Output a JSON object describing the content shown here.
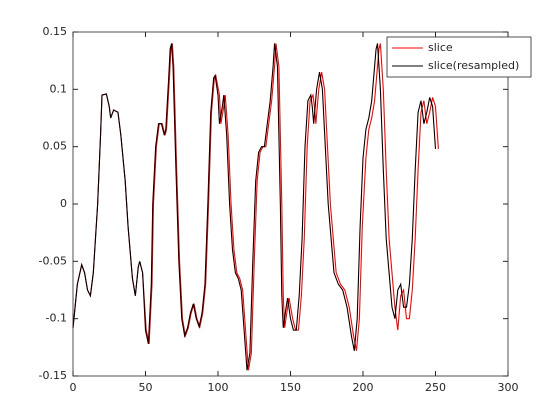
{
  "chart_data": {
    "type": "line",
    "xlim": [
      0,
      300
    ],
    "xticks": [
      0,
      50,
      100,
      150,
      200,
      250,
      300
    ],
    "ylim": [
      -0.15,
      0.15
    ],
    "yticks": [
      -0.15,
      -0.1,
      -0.05,
      0,
      0.05,
      0.1,
      0.15
    ],
    "grid": false,
    "legend": "northeast",
    "series": [
      {
        "name": "slice",
        "color": "#ff0000",
        "x": [
          0,
          3,
          6,
          8,
          10,
          12,
          14,
          17,
          19,
          20,
          23,
          25,
          26,
          28,
          31,
          33,
          36,
          38,
          41,
          43,
          45,
          46,
          48,
          50.5,
          52.5,
          54.5,
          55.5,
          57.5,
          59.5,
          61.5,
          63.5,
          64.5,
          66.5,
          67.5,
          68.5,
          69.5,
          71.5,
          73.5,
          75.5,
          77.5,
          79.5,
          81.5,
          83.5,
          85.5,
          87.5,
          89.5,
          91.5,
          93.5,
          95.5,
          97.5,
          98.5,
          101,
          102,
          104,
          105,
          107,
          109,
          111,
          113,
          115,
          117,
          119,
          121,
          123,
          125,
          127,
          129,
          131,
          133,
          135,
          137,
          139,
          140,
          142,
          144,
          145,
          146,
          148,
          149,
          151.5,
          153.5,
          155.5,
          157.5,
          159.5,
          161.5,
          163.5,
          165.5,
          166.5,
          167.5,
          169.5,
          171.5,
          173.5,
          175.5,
          177.5,
          179.5,
          181.5,
          184.5,
          187.5,
          190.5,
          193.5,
          195.5,
          197.5,
          199.5,
          202,
          204,
          206,
          208,
          211,
          212,
          214,
          216,
          218,
          220,
          222,
          224,
          226,
          228,
          230,
          232,
          234,
          236,
          238,
          240,
          242,
          244,
          246,
          248,
          250,
          252
        ],
        "values": [
          -0.108,
          -0.07,
          -0.053,
          -0.06,
          -0.075,
          -0.08,
          -0.06,
          0.0,
          0.06,
          0.095,
          0.096,
          0.085,
          0.075,
          0.082,
          0.08,
          0.06,
          0.02,
          -0.02,
          -0.065,
          -0.08,
          -0.055,
          -0.05,
          -0.06,
          -0.11,
          -0.122,
          -0.07,
          0.0,
          0.05,
          0.07,
          0.07,
          0.06,
          0.065,
          0.11,
          0.135,
          0.14,
          0.12,
          0.03,
          -0.05,
          -0.1,
          -0.115,
          -0.108,
          -0.095,
          -0.087,
          -0.1,
          -0.107,
          -0.095,
          -0.07,
          0.0,
          0.08,
          0.11,
          0.112,
          0.095,
          0.07,
          0.085,
          0.095,
          0.06,
          0.0,
          -0.04,
          -0.06,
          -0.065,
          -0.075,
          -0.11,
          -0.145,
          -0.13,
          -0.05,
          0.02,
          0.045,
          0.05,
          0.05,
          0.07,
          0.09,
          0.12,
          0.14,
          0.12,
          0.0,
          -0.08,
          -0.108,
          -0.09,
          -0.082,
          -0.1,
          -0.11,
          -0.11,
          -0.08,
          -0.03,
          0.05,
          0.09,
          0.095,
          0.085,
          0.07,
          0.1,
          0.115,
          0.1,
          0.05,
          0.0,
          -0.03,
          -0.06,
          -0.07,
          -0.075,
          -0.09,
          -0.115,
          -0.128,
          -0.1,
          -0.02,
          0.04,
          0.065,
          0.075,
          0.09,
          0.135,
          0.14,
          0.1,
          0.03,
          -0.03,
          -0.06,
          -0.09,
          -0.11,
          -0.08,
          -0.075,
          -0.1,
          -0.1,
          -0.075,
          -0.03,
          0.03,
          0.08,
          0.09,
          0.07,
          0.08,
          0.093,
          0.085,
          0.048
        ]
      },
      {
        "name": "slice(resampled)",
        "color": "#000000",
        "x": [
          0,
          3,
          6,
          8,
          10,
          12,
          14,
          17,
          19,
          20,
          23,
          25,
          26,
          28,
          31,
          33,
          36,
          38,
          41,
          43,
          45,
          46,
          48,
          50,
          52,
          54,
          55,
          57,
          59,
          61,
          63,
          64,
          66,
          67,
          68,
          69,
          71,
          73,
          75,
          77,
          79,
          81,
          83,
          85,
          87,
          89,
          91,
          93,
          95,
          97,
          98,
          100,
          101,
          103,
          104,
          106,
          108,
          110,
          112,
          114,
          116,
          118,
          120,
          122,
          124,
          126,
          128,
          130,
          132,
          134,
          136,
          138,
          139,
          141,
          143,
          144,
          145,
          147,
          148,
          150,
          152,
          154,
          156,
          158,
          160,
          162,
          164,
          165,
          166,
          168,
          170,
          172,
          174,
          176,
          178,
          180,
          183,
          186,
          189,
          192,
          194,
          196,
          198,
          200,
          202,
          204,
          206,
          209,
          210,
          212,
          214,
          216,
          218,
          220,
          222,
          224,
          226,
          228,
          230,
          232,
          234,
          236,
          238,
          240,
          242,
          244,
          246,
          248,
          250
        ],
        "values": [
          -0.108,
          -0.07,
          -0.053,
          -0.06,
          -0.075,
          -0.08,
          -0.06,
          0.0,
          0.06,
          0.095,
          0.096,
          0.085,
          0.075,
          0.082,
          0.08,
          0.06,
          0.02,
          -0.02,
          -0.065,
          -0.08,
          -0.055,
          -0.05,
          -0.06,
          -0.11,
          -0.122,
          -0.07,
          0.0,
          0.05,
          0.07,
          0.07,
          0.06,
          0.065,
          0.11,
          0.135,
          0.14,
          0.12,
          0.03,
          -0.05,
          -0.1,
          -0.115,
          -0.108,
          -0.095,
          -0.087,
          -0.1,
          -0.107,
          -0.095,
          -0.07,
          0.0,
          0.08,
          0.11,
          0.112,
          0.095,
          0.07,
          0.085,
          0.095,
          0.06,
          0.0,
          -0.04,
          -0.06,
          -0.065,
          -0.075,
          -0.11,
          -0.145,
          -0.13,
          -0.05,
          0.02,
          0.045,
          0.05,
          0.05,
          0.07,
          0.09,
          0.12,
          0.14,
          0.12,
          0.0,
          -0.08,
          -0.108,
          -0.09,
          -0.082,
          -0.1,
          -0.11,
          -0.11,
          -0.08,
          -0.03,
          0.05,
          0.09,
          0.095,
          0.085,
          0.07,
          0.1,
          0.115,
          0.1,
          0.05,
          0.0,
          -0.03,
          -0.06,
          -0.07,
          -0.075,
          -0.09,
          -0.115,
          -0.128,
          -0.1,
          -0.02,
          0.04,
          0.065,
          0.075,
          0.09,
          0.135,
          0.14,
          0.1,
          0.03,
          -0.03,
          -0.06,
          -0.09,
          -0.1,
          -0.075,
          -0.07,
          -0.09,
          -0.09,
          -0.07,
          -0.03,
          0.03,
          0.08,
          0.09,
          0.07,
          0.08,
          0.093,
          0.085,
          0.048
        ]
      }
    ]
  }
}
